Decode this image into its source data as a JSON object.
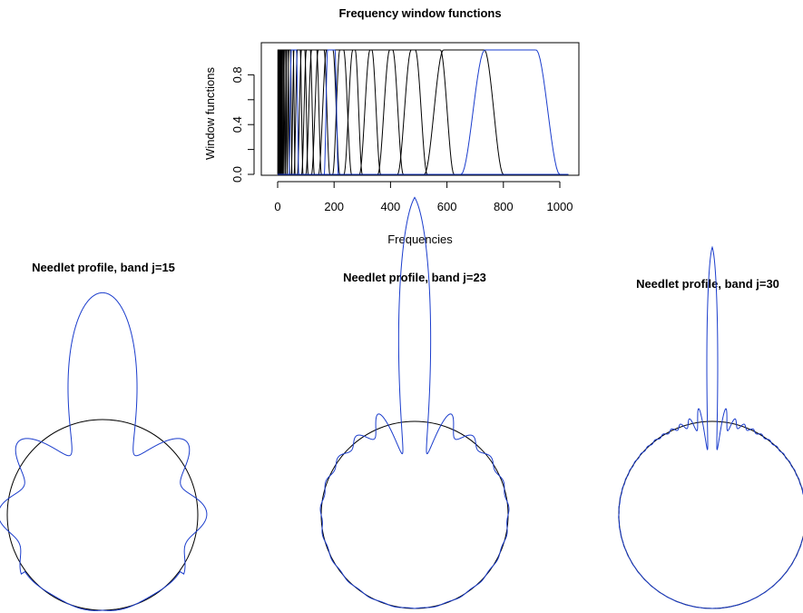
{
  "chart_data": [
    {
      "type": "line",
      "title": "Frequency window functions",
      "xlabel": "Frequencies",
      "ylabel": "Window functions",
      "xlim": [
        0,
        1030
      ],
      "ylim": [
        0,
        1
      ],
      "xticks": [
        0,
        200,
        400,
        600,
        800,
        1000
      ],
      "yticks": [
        0.0,
        0.4,
        0.8
      ],
      "ytick_labels": [
        "0.0",
        "0.4",
        "0.8"
      ],
      "grid": false,
      "bands": [
        {
          "band": 1,
          "start": 0.5,
          "end": 2.2,
          "color": "#000000"
        },
        {
          "band": 2,
          "start": 1.2,
          "end": 3.4,
          "color": "#000000"
        },
        {
          "band": 3,
          "start": 2,
          "end": 4.8,
          "color": "#000000"
        },
        {
          "band": 4,
          "start": 3,
          "end": 6.5,
          "color": "#000000"
        },
        {
          "band": 5,
          "start": 4,
          "end": 8.5,
          "color": "#000000"
        },
        {
          "band": 6,
          "start": 5.5,
          "end": 11,
          "color": "#000000"
        },
        {
          "band": 7,
          "start": 7,
          "end": 14,
          "color": "#000000"
        },
        {
          "band": 8,
          "start": 9,
          "end": 18,
          "color": "#000000"
        },
        {
          "band": 9,
          "start": 11,
          "end": 22,
          "color": "#000000"
        },
        {
          "band": 10,
          "start": 14,
          "end": 28,
          "color": "#000000"
        },
        {
          "band": 11,
          "start": 18,
          "end": 34,
          "color": "#000000"
        },
        {
          "band": 12,
          "start": 22,
          "end": 42,
          "color": "#000000"
        },
        {
          "band": 13,
          "start": 27,
          "end": 51,
          "color": "#000000"
        },
        {
          "band": 14,
          "start": 33,
          "end": 62,
          "color": "#000000"
        },
        {
          "band": 15,
          "start": 40,
          "end": 75,
          "color": "#1a3ccc"
        },
        {
          "band": 16,
          "start": 48,
          "end": 90,
          "color": "#000000"
        },
        {
          "band": 17,
          "start": 58,
          "end": 108,
          "color": "#000000"
        },
        {
          "band": 18,
          "start": 70,
          "end": 130,
          "color": "#000000"
        },
        {
          "band": 19,
          "start": 85,
          "end": 155,
          "color": "#000000"
        },
        {
          "band": 20,
          "start": 100,
          "end": 185,
          "color": "#000000"
        },
        {
          "band": 21,
          "start": 120,
          "end": 220,
          "color": "#000000"
        },
        {
          "band": 22,
          "start": 145,
          "end": 262,
          "color": "#000000"
        },
        {
          "band": 23,
          "start": 165,
          "end": 215,
          "color": "#1a3ccc"
        },
        {
          "band": 24,
          "start": 195,
          "end": 300,
          "color": "#000000"
        },
        {
          "band": 25,
          "start": 235,
          "end": 365,
          "color": "#000000"
        },
        {
          "band": 26,
          "start": 290,
          "end": 445,
          "color": "#000000"
        },
        {
          "band": 27,
          "start": 355,
          "end": 530,
          "color": "#000000"
        },
        {
          "band": 28,
          "start": 425,
          "end": 625,
          "color": "#000000"
        },
        {
          "band": 29,
          "start": 520,
          "end": 800,
          "color": "#000000"
        },
        {
          "band": 30,
          "start": 650,
          "end": 1000,
          "color": "#1a3ccc"
        }
      ]
    },
    {
      "type": "line",
      "title": "Needlet profile, band j=15",
      "band": 15,
      "peak_ratio": 1.7,
      "line_color": "#1a3ccc",
      "circle_color": "#000000"
    },
    {
      "type": "line",
      "title": "Needlet profile, band j=23",
      "band": 23,
      "peak_ratio": 1.9,
      "line_color": "#1a3ccc",
      "circle_color": "#000000"
    },
    {
      "type": "line",
      "title": "Needlet profile, band j=30",
      "band": 30,
      "peak_ratio": 1.7,
      "line_color": "#1a3ccc",
      "circle_color": "#000000"
    }
  ]
}
